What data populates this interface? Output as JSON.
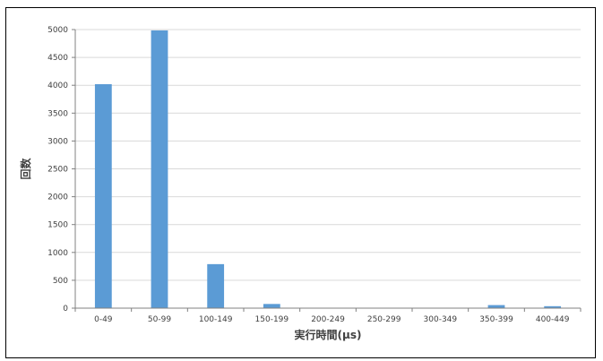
{
  "chart_data": {
    "type": "bar",
    "title": "",
    "xlabel": "実行時間(μs)",
    "ylabel": "回数",
    "categories": [
      "0-49",
      "50-99",
      "100-149",
      "150-199",
      "200-249",
      "250-299",
      "300-349",
      "350-399",
      "400-449"
    ],
    "values": [
      4020,
      4985,
      790,
      75,
      0,
      0,
      0,
      55,
      35
    ],
    "ylim": [
      0,
      5000
    ],
    "yticks": [
      0,
      500,
      1000,
      1500,
      2000,
      2500,
      3000,
      3500,
      4000,
      4500,
      5000
    ],
    "grid": true,
    "legend": "none",
    "bar_color": "#5B9BD5",
    "grid_color": "#D9D9D9",
    "axis_color": "#808080"
  }
}
